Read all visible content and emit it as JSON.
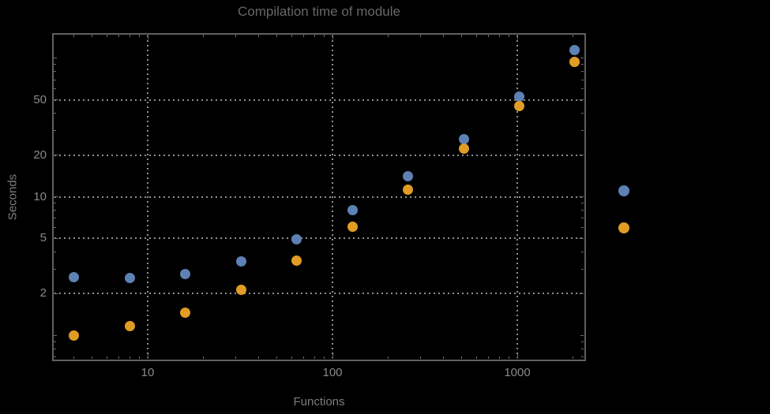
{
  "chart_data": {
    "type": "scatter",
    "title": "Compilation time of module",
    "xlabel": "Functions",
    "ylabel": "Seconds",
    "x_scale": "log",
    "y_scale": "log",
    "xlim": [
      3.07,
      2307
    ],
    "ylim": [
      0.667,
      150
    ],
    "grid": "dotted",
    "legend_position": "outside-right",
    "x_major_ticks": {
      "values": [
        10,
        100,
        1000
      ],
      "labels": [
        "10",
        "100",
        "1000"
      ]
    },
    "y_major_ticks": {
      "values": [
        2,
        5,
        10,
        20,
        50
      ],
      "labels": [
        "2",
        "5",
        "10",
        "20",
        "50"
      ]
    },
    "x_minor_ticks": [
      4,
      5,
      6,
      7,
      8,
      9,
      20,
      30,
      40,
      50,
      60,
      70,
      80,
      90,
      200,
      300,
      400,
      500,
      600,
      700,
      800,
      900,
      2000
    ],
    "y_minor_ticks": [
      0.7,
      0.8,
      0.9,
      3,
      4,
      6,
      7,
      8,
      9,
      30,
      40,
      60,
      70,
      80,
      90
    ],
    "y_unlabeled_ticks": [
      1,
      100
    ],
    "gridline_x_values": [
      10,
      100,
      1000
    ],
    "gridline_y_values": [
      2,
      5,
      10,
      20,
      50
    ],
    "series": [
      {
        "name": "series-1-blue",
        "color": "#5e81b5",
        "points": [
          [
            4,
            2.63
          ],
          [
            8,
            2.6
          ],
          [
            16,
            2.78
          ],
          [
            32,
            3.42
          ],
          [
            64,
            4.93
          ],
          [
            128,
            8.0
          ],
          [
            256,
            14.1
          ],
          [
            512,
            26.0
          ],
          [
            1024,
            52.7
          ],
          [
            2048,
            114.0
          ]
        ]
      },
      {
        "name": "series-2-orange",
        "color": "#e19c24",
        "points": [
          [
            4,
            0.99
          ],
          [
            8,
            1.17
          ],
          [
            16,
            1.46
          ],
          [
            32,
            2.14
          ],
          [
            64,
            3.47
          ],
          [
            128,
            6.1
          ],
          [
            256,
            11.3
          ],
          [
            512,
            22.2
          ],
          [
            1024,
            45.0
          ],
          [
            2048,
            93.8
          ]
        ]
      }
    ],
    "legend": {
      "entries": [
        {
          "marker_color": "#5e81b5",
          "label": ""
        },
        {
          "marker_color": "#e19c24",
          "label": ""
        }
      ]
    }
  },
  "colors": {
    "background": "#000000",
    "frame": "#5f5f5f",
    "grid": "#8f8f8f",
    "tick": "#6a6a6a",
    "tick_label": "#8a8a8a",
    "axis_label": "#7d7d7d",
    "title": "#676767"
  }
}
